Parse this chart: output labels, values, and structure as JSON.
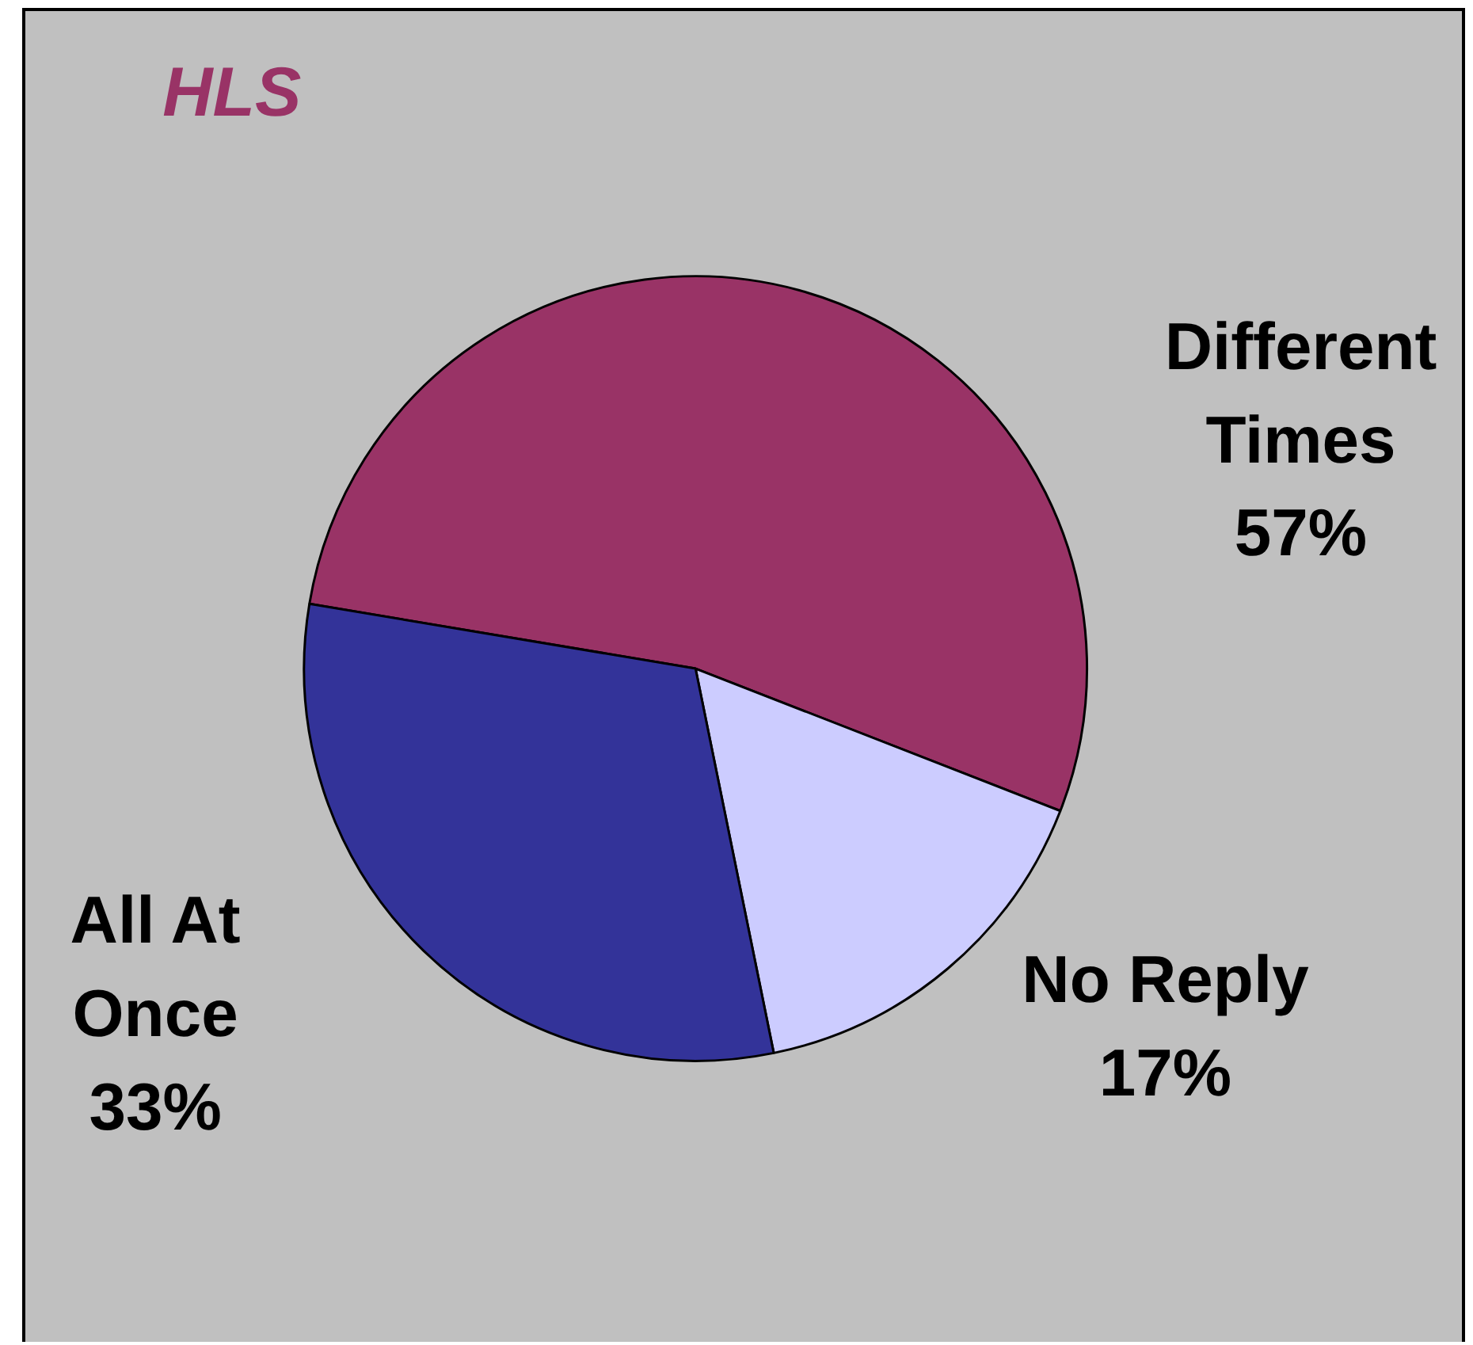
{
  "chart_data": {
    "type": "pie",
    "title": "HLS",
    "categories": [
      "Different Times",
      "No Reply",
      "All At Once"
    ],
    "values": [
      57,
      17,
      33
    ],
    "colors": [
      "#993366",
      "#ccccff",
      "#333399"
    ],
    "value_labels": [
      "57%",
      "17%",
      "33%"
    ]
  }
}
